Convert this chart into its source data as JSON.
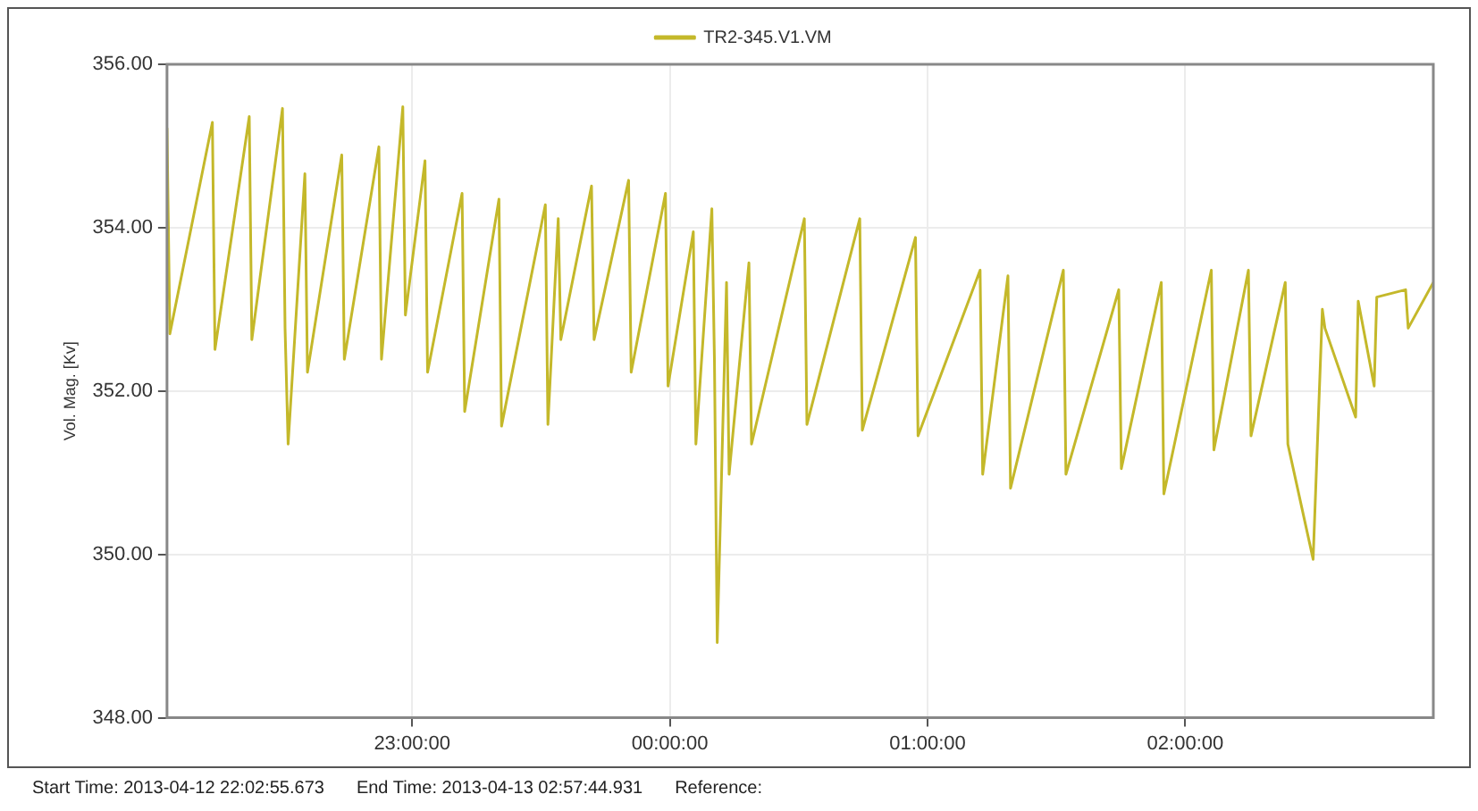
{
  "chart_data": {
    "type": "line",
    "ylabel": "Vol. Mag. [Kv]",
    "annotations": [
      "Start Time: 2013-04-12 22:02:55.673",
      "End Time: 2013-04-13 02:57:44.931",
      "Reference:"
    ],
    "xlim": [
      "2013-04-12T22:02:56",
      "2013-04-13T02:57:45"
    ],
    "xticks": [
      {
        "value": "2013-04-12T23:00:00",
        "label": "23:00:00"
      },
      {
        "value": "2013-04-13T00:00:00",
        "label": "00:00:00"
      },
      {
        "value": "2013-04-13T01:00:00",
        "label": "01:00:00"
      },
      {
        "value": "2013-04-13T02:00:00",
        "label": "02:00:00"
      }
    ],
    "ylim": [
      348,
      356
    ],
    "yticks": [
      {
        "value": 348,
        "label": "348.00"
      },
      {
        "value": 350,
        "label": "350.00"
      },
      {
        "value": 352,
        "label": "352.00"
      },
      {
        "value": 354,
        "label": "354.00"
      },
      {
        "value": 356,
        "label": "356.00"
      }
    ],
    "grid": true,
    "legend": "top",
    "marker": "none",
    "line_style": "solid",
    "series": [
      {
        "name": "TR2-345.V1.VM",
        "color": "#c4b82a",
        "x": [
          "2013-04-12T22:02:56",
          "2013-04-12T22:03:36",
          "2013-04-12T22:13:30",
          "2013-04-12T22:14:06",
          "2013-04-12T22:22:05",
          "2013-04-12T22:22:41",
          "2013-04-12T22:29:49",
          "2013-04-12T22:30:25",
          "2013-04-12T22:31:08",
          "2013-04-12T22:35:02",
          "2013-04-12T22:35:38",
          "2013-04-12T22:43:37",
          "2013-04-12T22:44:13",
          "2013-04-12T22:52:16",
          "2013-04-12T22:52:52",
          "2013-04-12T22:57:50",
          "2013-04-12T22:58:26",
          "2013-04-12T23:03:00",
          "2013-04-12T23:03:36",
          "2013-04-12T23:11:38",
          "2013-04-12T23:12:14",
          "2013-04-12T23:20:13",
          "2013-04-12T23:20:49",
          "2013-04-12T23:31:01",
          "2013-04-12T23:31:37",
          "2013-04-12T23:34:01",
          "2013-04-12T23:34:37",
          "2013-04-12T23:41:46",
          "2013-04-12T23:42:22",
          "2013-04-12T23:50:24",
          "2013-04-12T23:51:00",
          "2013-04-12T23:58:59",
          "2013-04-12T23:59:35",
          "2013-04-13T00:05:28",
          "2013-04-13T00:06:04",
          "2013-04-13T00:09:47",
          "2013-04-13T00:10:23",
          "2013-04-13T00:11:02",
          "2013-04-13T00:13:12",
          "2013-04-13T00:13:48",
          "2013-04-13T00:18:25",
          "2013-04-13T00:19:01",
          "2013-04-13T00:31:19",
          "2013-04-13T00:31:55",
          "2013-04-13T00:44:13",
          "2013-04-13T00:44:49",
          "2013-04-13T00:57:11",
          "2013-04-13T00:57:47",
          "2013-04-13T01:12:14",
          "2013-04-13T01:12:50",
          "2013-04-13T01:18:43",
          "2013-04-13T01:19:19",
          "2013-04-13T01:31:37",
          "2013-04-13T01:32:13",
          "2013-04-13T01:44:31",
          "2013-04-13T01:45:07",
          "2013-04-13T01:54:25",
          "2013-04-13T01:55:01",
          "2013-04-13T02:06:04",
          "2013-04-13T02:06:40",
          "2013-04-13T02:14:42",
          "2013-04-13T02:15:18",
          "2013-04-13T02:23:17",
          "2013-04-13T02:23:53",
          "2013-04-13T02:29:46",
          "2013-04-13T02:31:55",
          "2013-04-13T02:32:31",
          "2013-04-13T02:39:40",
          "2013-04-13T02:40:16",
          "2013-04-13T02:43:59",
          "2013-04-13T02:44:35",
          "2013-04-13T02:51:18",
          "2013-04-13T02:51:54",
          "2013-04-13T02:57:45"
        ],
        "values": [
          355.22,
          352.7,
          355.29,
          352.51,
          355.36,
          352.63,
          355.46,
          352.77,
          351.35,
          354.66,
          352.23,
          354.89,
          352.39,
          354.99,
          352.39,
          355.48,
          352.93,
          354.82,
          352.23,
          354.42,
          351.75,
          354.35,
          351.57,
          354.28,
          351.59,
          354.11,
          352.63,
          354.51,
          352.63,
          354.58,
          352.23,
          354.42,
          352.06,
          353.95,
          351.35,
          354.23,
          352.39,
          348.92,
          353.33,
          350.98,
          353.57,
          351.35,
          354.11,
          351.59,
          354.11,
          351.52,
          353.88,
          351.45,
          353.48,
          350.98,
          353.41,
          350.81,
          353.48,
          350.98,
          353.24,
          351.05,
          353.33,
          350.74,
          353.48,
          351.28,
          353.48,
          351.45,
          353.33,
          351.35,
          349.94,
          353.0,
          352.77,
          351.68,
          353.1,
          352.06,
          353.15,
          353.24,
          352.77,
          353.33
        ]
      }
    ]
  }
}
